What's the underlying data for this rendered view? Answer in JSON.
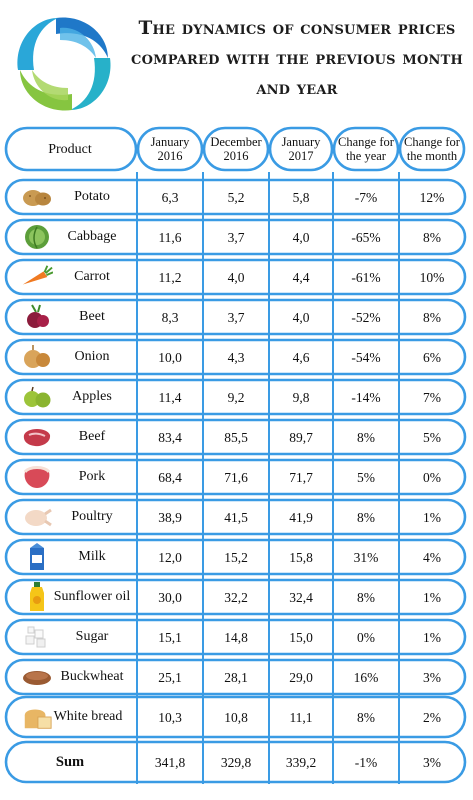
{
  "title": "The dynamics of consumer prices compared with the previous month and year",
  "colors": {
    "border": "#3a9be4",
    "logo_blue": "#1f78c8",
    "logo_teal": "#27b1c9",
    "logo_green": "#86c540"
  },
  "header": {
    "product": "Product",
    "jan2016": [
      "January",
      "2016"
    ],
    "dec2016": [
      "December",
      "2016"
    ],
    "jan2017": [
      "January",
      "2017"
    ],
    "change_year": [
      "Change for",
      "the year"
    ],
    "change_month": [
      "Change for",
      "the month"
    ]
  },
  "rows": [
    {
      "product": "Potato",
      "icon": "potato-icon",
      "jan2016": "6,3",
      "dec2016": "5,2",
      "jan2017": "5,8",
      "change_year": "-7%",
      "change_month": "12%"
    },
    {
      "product": "Cabbage",
      "icon": "cabbage-icon",
      "jan2016": "11,6",
      "dec2016": "3,7",
      "jan2017": "4,0",
      "change_year": "-65%",
      "change_month": "8%"
    },
    {
      "product": "Carrot",
      "icon": "carrot-icon",
      "jan2016": "11,2",
      "dec2016": "4,0",
      "jan2017": "4,4",
      "change_year": "-61%",
      "change_month": "10%"
    },
    {
      "product": "Beet",
      "icon": "beet-icon",
      "jan2016": "8,3",
      "dec2016": "3,7",
      "jan2017": "4,0",
      "change_year": "-52%",
      "change_month": "8%"
    },
    {
      "product": "Onion",
      "icon": "onion-icon",
      "jan2016": "10,0",
      "dec2016": "4,3",
      "jan2017": "4,6",
      "change_year": "-54%",
      "change_month": "6%"
    },
    {
      "product": "Apples",
      "icon": "apples-icon",
      "jan2016": "11,4",
      "dec2016": "9,2",
      "jan2017": "9,8",
      "change_year": "-14%",
      "change_month": "7%"
    },
    {
      "product": "Beef",
      "icon": "beef-icon",
      "jan2016": "83,4",
      "dec2016": "85,5",
      "jan2017": "89,7",
      "change_year": "8%",
      "change_month": "5%"
    },
    {
      "product": "Pork",
      "icon": "pork-icon",
      "jan2016": "68,4",
      "dec2016": "71,6",
      "jan2017": "71,7",
      "change_year": "5%",
      "change_month": "0%"
    },
    {
      "product": "Poultry",
      "icon": "poultry-icon",
      "jan2016": "38,9",
      "dec2016": "41,5",
      "jan2017": "41,9",
      "change_year": "8%",
      "change_month": "1%"
    },
    {
      "product": "Milk",
      "icon": "milk-icon",
      "jan2016": "12,0",
      "dec2016": "15,2",
      "jan2017": "15,8",
      "change_year": "31%",
      "change_month": "4%"
    },
    {
      "product": "Sunflower oil",
      "icon": "sunflower-oil-icon",
      "jan2016": "30,0",
      "dec2016": "32,2",
      "jan2017": "32,4",
      "change_year": "8%",
      "change_month": "1%"
    },
    {
      "product": "Sugar",
      "icon": "sugar-icon",
      "jan2016": "15,1",
      "dec2016": "14,8",
      "jan2017": "15,0",
      "change_year": "0%",
      "change_month": "1%"
    },
    {
      "product": "Buckwheat",
      "icon": "buckwheat-icon",
      "jan2016": "25,1",
      "dec2016": "28,1",
      "jan2017": "29,0",
      "change_year": "16%",
      "change_month": "3%"
    },
    {
      "product": "White bread",
      "icon": "white-bread-icon",
      "jan2016": "10,3",
      "dec2016": "10,8",
      "jan2017": "11,1",
      "change_year": "8%",
      "change_month": "2%"
    }
  ],
  "sum": {
    "label": "Sum",
    "jan2016": "341,8",
    "dec2016": "329,8",
    "jan2017": "339,2",
    "change_year": "-1%",
    "change_month": "3%"
  }
}
